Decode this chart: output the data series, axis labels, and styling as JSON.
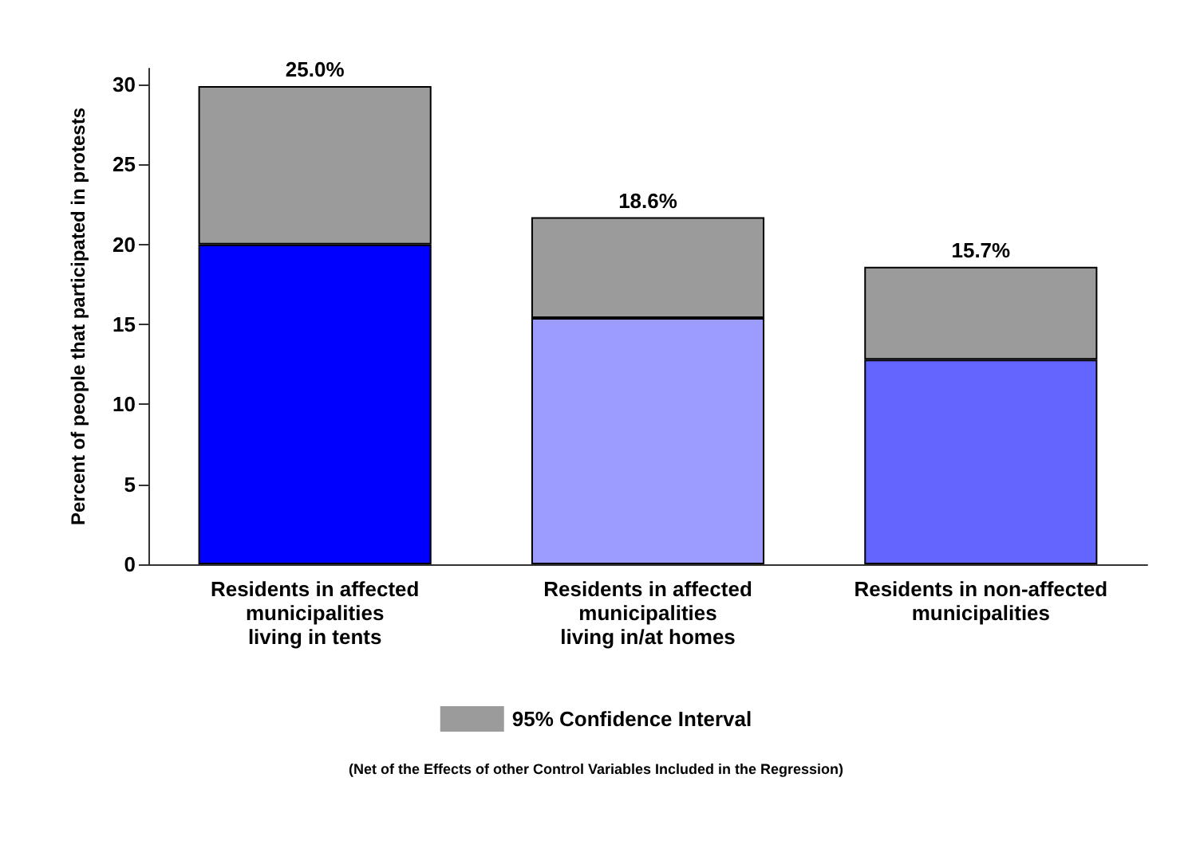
{
  "chart_data": {
    "type": "bar",
    "stacked": true,
    "ylabel": "Percent of people that participated in protests",
    "categories": [
      "Residents in affected\nmunicipalities\nliving in tents",
      "Residents in affected\nmunicipalities\nliving in/at homes",
      "Residents in non-affected\nmunicipalities"
    ],
    "series": [
      {
        "colors": [
          "#0000ff",
          "#9c9cff",
          "#6464ff"
        ],
        "values": [
          20.0,
          15.4,
          12.8
        ]
      },
      {
        "name": "95% Confidence Interval",
        "color": "#9b9b9b",
        "values": [
          9.9,
          6.3,
          5.8
        ]
      }
    ],
    "ylim": [
      0,
      31
    ],
    "yticks": [
      0,
      5,
      10,
      15,
      20,
      25,
      30
    ],
    "grid": false,
    "legend": "bottom",
    "annotations": [
      {
        "text": "25.0%",
        "x": "Residents in affected\nmunicipalities\nliving in tents",
        "y": 29.9
      },
      {
        "text": "18.6%",
        "x": "Residents in affected\nmunicipalities\nliving in/at homes",
        "y": 21.7
      },
      {
        "text": "15.7%",
        "x": "Residents in non-affected\nmunicipalities",
        "y": 18.6
      },
      "(Net of the Effects of other Control Variables Included in the Regression)"
    ]
  }
}
